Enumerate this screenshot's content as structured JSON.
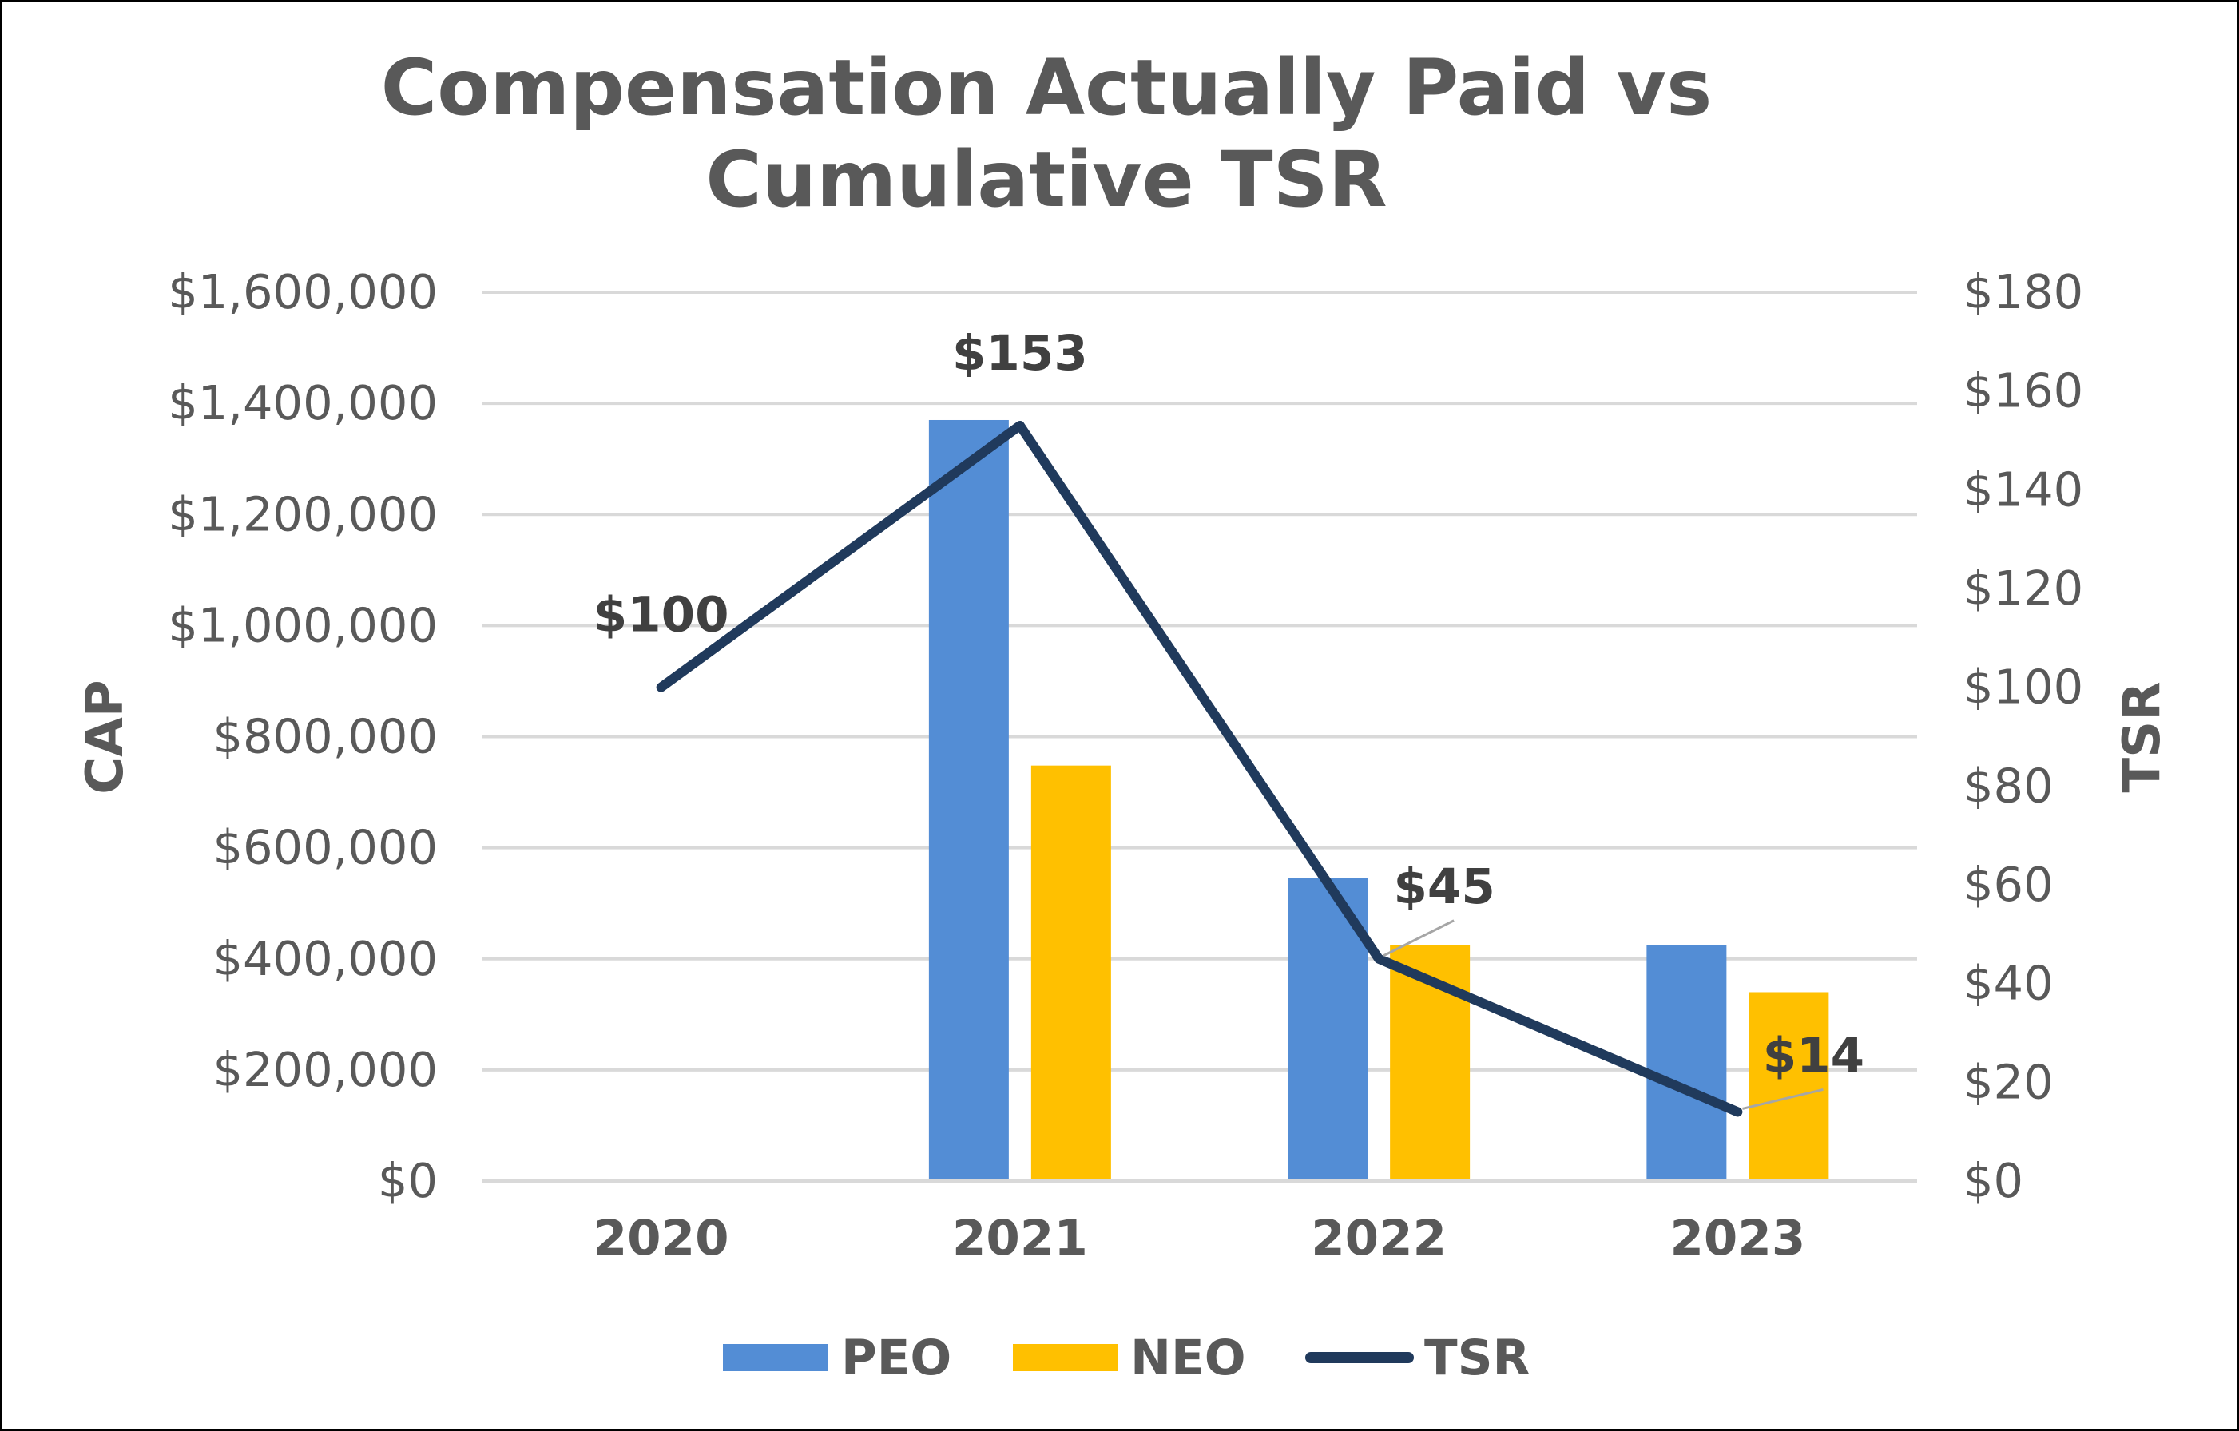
{
  "chart_data": {
    "type": "bar",
    "title_lines": [
      "Compensation Actually Paid vs",
      "Cumulative TSR"
    ],
    "categories": [
      "2020",
      "2021",
      "2022",
      "2023"
    ],
    "series": [
      {
        "name": "PEO",
        "kind": "bar",
        "axis": "left",
        "color": "#538DD5",
        "values": [
          null,
          1370000,
          545000,
          425000
        ]
      },
      {
        "name": "NEO",
        "kind": "bar",
        "axis": "left",
        "color": "#FFC000",
        "values": [
          null,
          748000,
          425000,
          340000
        ]
      },
      {
        "name": "TSR",
        "kind": "line",
        "axis": "right",
        "color": "#203A5C",
        "values": [
          100,
          153,
          45,
          14
        ],
        "labels": [
          "$100",
          "$153",
          "$45",
          "$14"
        ]
      }
    ],
    "y_left": {
      "label": "CAP",
      "ylim": [
        0,
        1600000
      ],
      "ticks": [
        0,
        200000,
        400000,
        600000,
        800000,
        1000000,
        1200000,
        1400000,
        1600000
      ],
      "tick_labels": [
        "$0",
        "$200,000",
        "$400,000",
        "$600,000",
        "$800,000",
        "$1,000,000",
        "$1,200,000",
        "$1,400,000",
        "$1,600,000"
      ]
    },
    "y_right": {
      "label": "TSR",
      "ylim": [
        0,
        180
      ],
      "ticks": [
        0,
        20,
        40,
        60,
        80,
        100,
        120,
        140,
        160,
        180
      ],
      "tick_labels": [
        "$0",
        "$20",
        "$40",
        "$60",
        "$80",
        "$100",
        "$120",
        "$140",
        "$160",
        "$180"
      ]
    },
    "grid": true,
    "grid_color": "#D9D9D9",
    "legend_position": "bottom",
    "legend": [
      "PEO",
      "NEO",
      "TSR"
    ]
  }
}
